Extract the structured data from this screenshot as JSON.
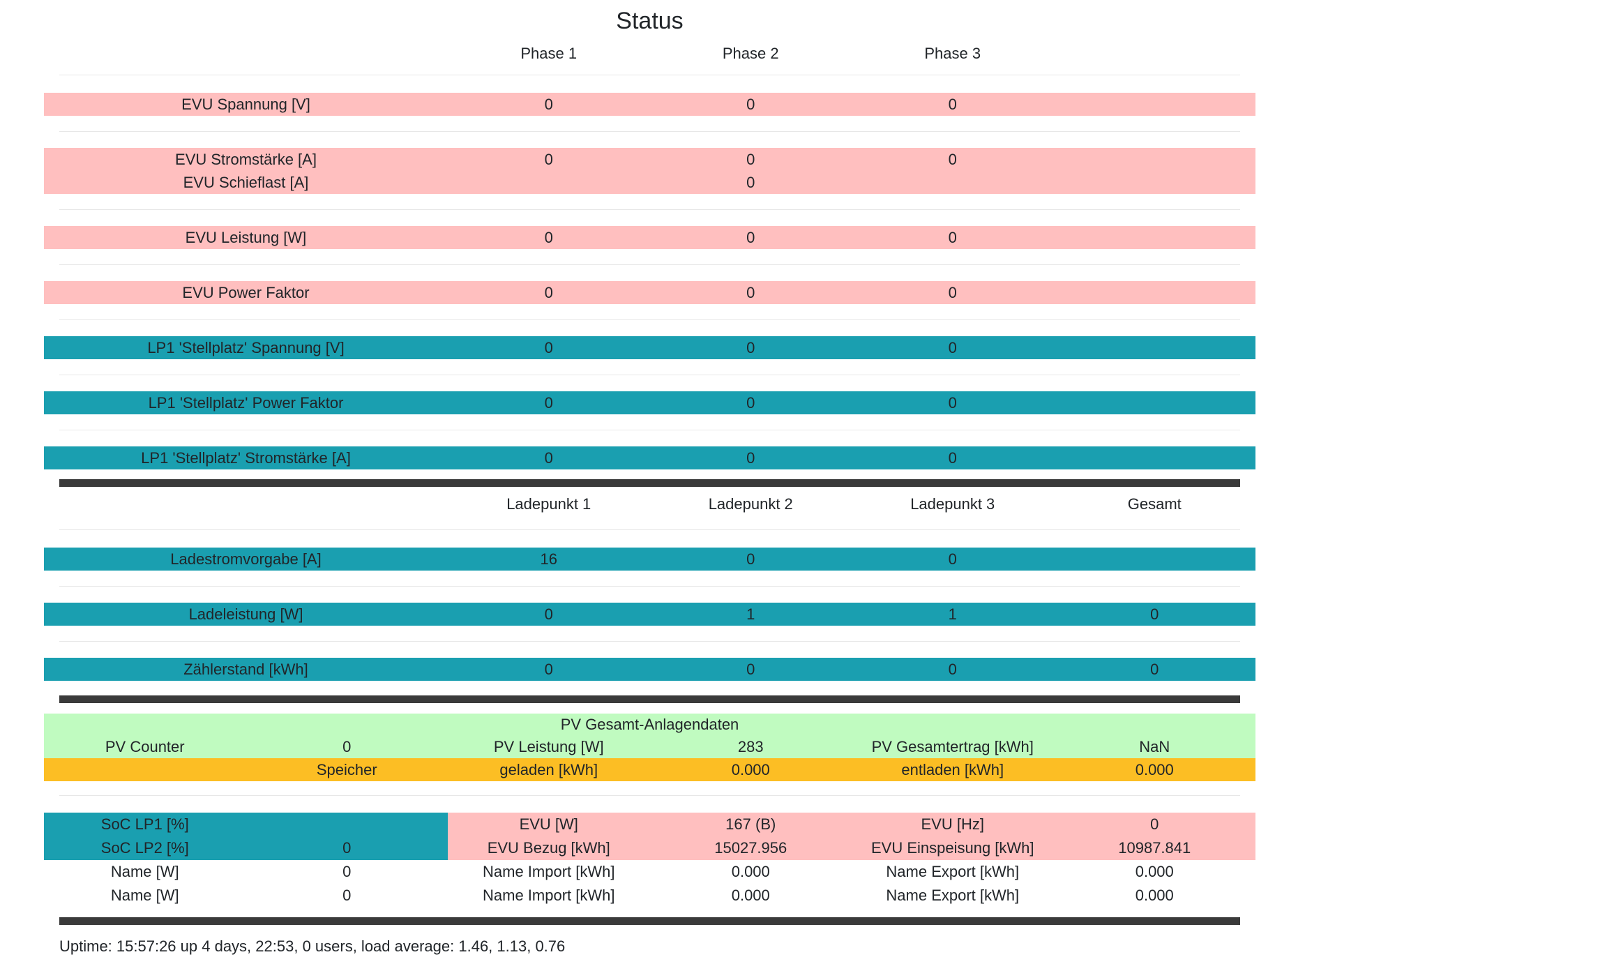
{
  "title": "Status",
  "colors": {
    "row_pink": "#ffbfbf",
    "row_teal": "#1a9fb0",
    "pv_green": "#c0fbc0",
    "storage_orange": "#fcbe24",
    "rule_dark": "#3a3a3a",
    "divider_gray": "#e7e7e7",
    "text": "#212529"
  },
  "phase_table": {
    "headers": [
      "Phase 1",
      "Phase 2",
      "Phase 3"
    ],
    "blocks": [
      {
        "style": "pink",
        "lines": [
          {
            "label": "EVU Spannung [V]",
            "values": [
              "0",
              "0",
              "0"
            ]
          }
        ]
      },
      {
        "style": "pink",
        "lines": [
          {
            "label": "EVU Stromstärke [A]",
            "values": [
              "0",
              "0",
              "0"
            ]
          },
          {
            "label": "EVU Schieflast [A]",
            "values": [
              "",
              "0",
              ""
            ]
          }
        ]
      },
      {
        "style": "pink",
        "lines": [
          {
            "label": "EVU Leistung [W]",
            "values": [
              "0",
              "0",
              "0"
            ]
          }
        ]
      },
      {
        "style": "pink",
        "lines": [
          {
            "label": "EVU Power Faktor",
            "values": [
              "0",
              "0",
              "0"
            ]
          }
        ]
      },
      {
        "style": "teal",
        "lines": [
          {
            "label": "LP1 'Stellplatz' Spannung [V]",
            "values": [
              "0",
              "0",
              "0"
            ]
          }
        ]
      },
      {
        "style": "teal",
        "lines": [
          {
            "label": "LP1 'Stellplatz' Power Faktor",
            "values": [
              "0",
              "0",
              "0"
            ]
          }
        ]
      },
      {
        "style": "teal",
        "lines": [
          {
            "label": "LP1 'Stellplatz' Stromstärke [A]",
            "values": [
              "0",
              "0",
              "0"
            ]
          }
        ]
      }
    ]
  },
  "chargepoint_table": {
    "headers": [
      "Ladepunkt 1",
      "Ladepunkt 2",
      "Ladepunkt 3",
      "Gesamt"
    ],
    "rows": [
      {
        "label": "Ladestromvorgabe [A]",
        "values": [
          "16",
          "0",
          "0",
          ""
        ]
      },
      {
        "label": "Ladeleistung [W]",
        "values": [
          "0",
          "1",
          "1",
          "0"
        ]
      },
      {
        "label": "Zählerstand [kWh]",
        "values": [
          "0",
          "0",
          "0",
          "0"
        ]
      }
    ]
  },
  "pv_section": {
    "title": "PV Gesamt-Anlagendaten",
    "data_row": [
      "PV Counter",
      "0",
      "PV Leistung [W]",
      "283",
      "PV Gesamtertrag [kWh]",
      "NaN"
    ],
    "storage_row": [
      "",
      "Speicher",
      "geladen [kWh]",
      "0.000",
      "entladen [kWh]",
      "0.000"
    ]
  },
  "summary_table": {
    "rows": [
      {
        "cells": [
          "SoC LP1 [%]",
          "",
          "EVU [W]",
          "167 (B)",
          "EVU [Hz]",
          "0"
        ],
        "colored": true
      },
      {
        "cells": [
          "SoC LP2 [%]",
          "0",
          "EVU Bezug [kWh]",
          "15027.956",
          "EVU Einspeisung [kWh]",
          "10987.841"
        ],
        "colored": true
      },
      {
        "cells": [
          "Name [W]",
          "0",
          "Name Import [kWh]",
          "0.000",
          "Name Export [kWh]",
          "0.000"
        ],
        "colored": false
      },
      {
        "cells": [
          "Name [W]",
          "0",
          "Name Import [kWh]",
          "0.000",
          "Name Export [kWh]",
          "0.000"
        ],
        "colored": false
      }
    ]
  },
  "footer": {
    "uptime": "Uptime: 15:57:26 up 4 days, 22:53, 0 users, load average: 1.46, 1.13, 0.76"
  }
}
